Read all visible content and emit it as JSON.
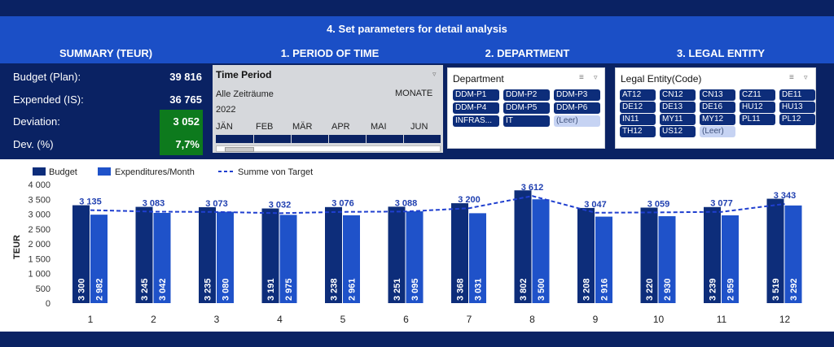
{
  "banner": {
    "title": "4. Set parameters for detail analysis"
  },
  "sections": {
    "summary": "SUMMARY (TEUR)",
    "period": "1. PERIOD OF TIME",
    "department": "2. DEPARTMENT",
    "legal_entity": "3. LEGAL ENTITY"
  },
  "summary": {
    "rows": [
      {
        "label": "Budget (Plan):",
        "value": "39 816"
      },
      {
        "label": "Expended (IS):",
        "value": "36 765"
      },
      {
        "label": "Deviation:",
        "value": "3 052"
      },
      {
        "label": "Dev. (%)",
        "value": "7,7%"
      }
    ],
    "highlight_color": "#0d7a1d"
  },
  "time_period": {
    "title": "Time Period",
    "all_periods": "Alle Zeiträume",
    "unit": "MONATE",
    "year": "2022",
    "months": [
      "JÄN",
      "FEB",
      "MÄR",
      "APR",
      "MAI",
      "JUN"
    ]
  },
  "department": {
    "title": "Department",
    "items": [
      "DDM-P1",
      "DDM-P2",
      "DDM-P3",
      "DDM-P4",
      "DDM-P5",
      "DDM-P6",
      "INFRAS...",
      "IT",
      "(Leer)"
    ]
  },
  "legal_entity": {
    "title": "Legal Entity(Code)",
    "items": [
      "AT12",
      "CN12",
      "CN13",
      "CZ11",
      "DE11",
      "DE12",
      "DE13",
      "DE16",
      "HU12",
      "HU13",
      "IN11",
      "MY11",
      "MY12",
      "PL11",
      "PL12",
      "TH12",
      "US12",
      "(Leer)"
    ]
  },
  "icons": {
    "filter": "filter-icon",
    "multiselect": "multi-select-icon",
    "clear_filter": "clear-filter-icon"
  },
  "colors": {
    "navy": "#0a2263",
    "banner": "#1b4fc6",
    "budget_bar": "#0d2d7a",
    "expend_bar": "#1f52c9",
    "target_line": "#1f3fcf"
  },
  "chart_data": {
    "type": "bar",
    "legend": [
      "Budget",
      "Expenditures/Month",
      "Summe von Target"
    ],
    "legend_position": "top-left",
    "ylabel": "TEUR",
    "ylim": [
      0,
      4000
    ],
    "yticks": [
      "4 000",
      "3 500",
      "3 000",
      "2 500",
      "2 000",
      "1 500",
      "1 000",
      "500",
      "0"
    ],
    "ytick_values": [
      4000,
      3500,
      3000,
      2500,
      2000,
      1500,
      1000,
      500,
      0
    ],
    "categories": [
      "1",
      "2",
      "3",
      "4",
      "5",
      "6",
      "7",
      "8",
      "9",
      "10",
      "11",
      "12"
    ],
    "series": [
      {
        "name": "Budget",
        "kind": "bar",
        "values": [
          3300,
          3245,
          3235,
          3191,
          3238,
          3251,
          3368,
          3802,
          3208,
          3220,
          3239,
          3519
        ],
        "labels": [
          "3 300",
          "3 245",
          "3 235",
          "3 191",
          "3 238",
          "3 251",
          "3 368",
          "3 802",
          "3 208",
          "3 220",
          "3 239",
          "3 519"
        ]
      },
      {
        "name": "Expenditures/Month",
        "kind": "bar",
        "values": [
          2982,
          3042,
          3080,
          2975,
          2961,
          3095,
          3031,
          3500,
          2916,
          2930,
          2959,
          3292
        ],
        "labels": [
          "2 982",
          "3 042",
          "3 080",
          "2 975",
          "2 961",
          "3 095",
          "3 031",
          "3 500",
          "2 916",
          "2 930",
          "2 959",
          "3 292"
        ]
      },
      {
        "name": "Summe von Target",
        "kind": "line",
        "style": "dashed",
        "values": [
          3135,
          3083,
          3073,
          3032,
          3076,
          3088,
          3200,
          3612,
          3047,
          3059,
          3077,
          3343
        ],
        "labels": [
          "3 135",
          "3 083",
          "3 073",
          "3 032",
          "3 076",
          "3 088",
          "3 200",
          "3 612",
          "3 047",
          "3 059",
          "3 077",
          "3 343"
        ]
      }
    ]
  }
}
